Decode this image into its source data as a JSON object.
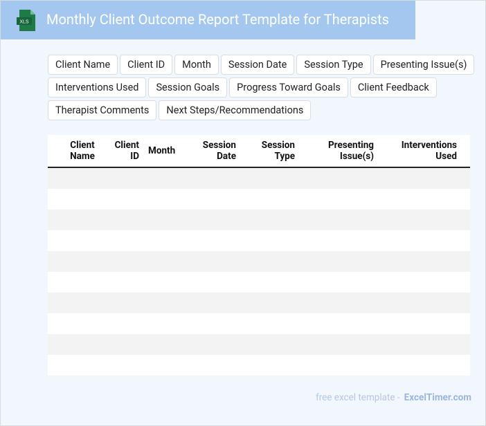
{
  "header": {
    "title": "Monthly Client Outcome Report Template for Therapists",
    "icon_label": "XLS"
  },
  "tags": [
    "Client Name",
    "Client ID",
    "Month",
    "Session Date",
    "Session Type",
    "Presenting Issue(s)",
    "Interventions Used",
    "Session Goals",
    "Progress Toward Goals",
    "Client Feedback",
    "Therapist Comments",
    "Next Steps/Recommendations"
  ],
  "table": {
    "headers": [
      "Client Name",
      "Client ID",
      "Month",
      "Session Date",
      "Session Type",
      "Presenting Issue(s)",
      "Interventions Used"
    ]
  },
  "footer": {
    "text": "free excel template -",
    "site": "ExcelTimer.com"
  }
}
